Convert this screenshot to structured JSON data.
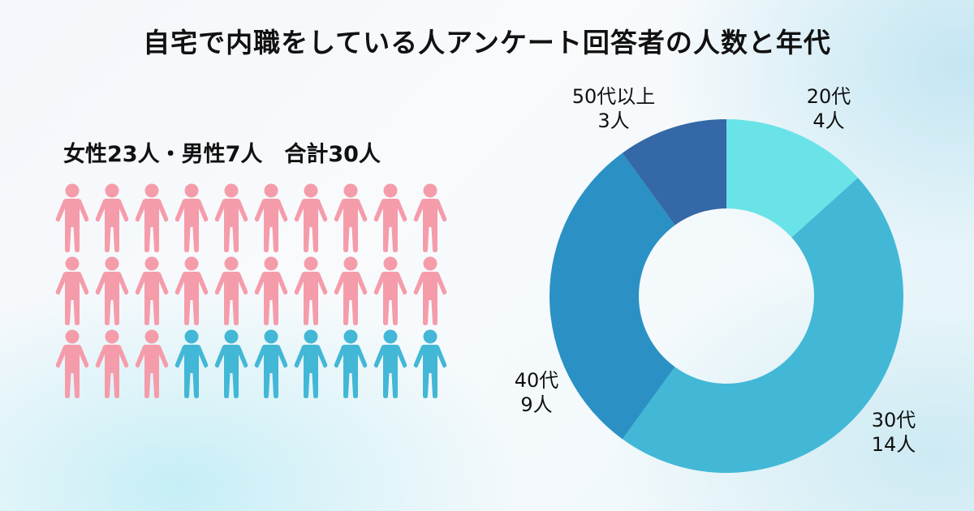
{
  "title": "自宅で内職をしている人アンケート回答者の人数と年代",
  "summary": {
    "text": "女性23人・男性7人　合計30人",
    "female": 23,
    "male": 7,
    "total": 30
  },
  "pictogram": {
    "columns": 10,
    "rows": 3,
    "female_color": "#f59cab",
    "male_color": "#43b7d6",
    "icon": "person-icon"
  },
  "chart_data": {
    "type": "pie",
    "subtype": "donut",
    "title": "自宅で内職をしている人アンケート回答者の人数と年代",
    "categories": [
      "20代",
      "30代",
      "40代",
      "50代以上"
    ],
    "values": [
      4,
      14,
      9,
      3
    ],
    "unit": "人",
    "colors": [
      "#6ae3e8",
      "#42b8d6",
      "#2b91c4",
      "#3468a6"
    ],
    "start_angle": "top (12 o'clock), clockwise",
    "labels": [
      {
        "category": "20代",
        "value_text": "4人"
      },
      {
        "category": "30代",
        "value_text": "14人"
      },
      {
        "category": "40代",
        "value_text": "9人"
      },
      {
        "category": "50代以上",
        "value_text": "3人"
      }
    ],
    "legend": "none (direct labels)"
  }
}
